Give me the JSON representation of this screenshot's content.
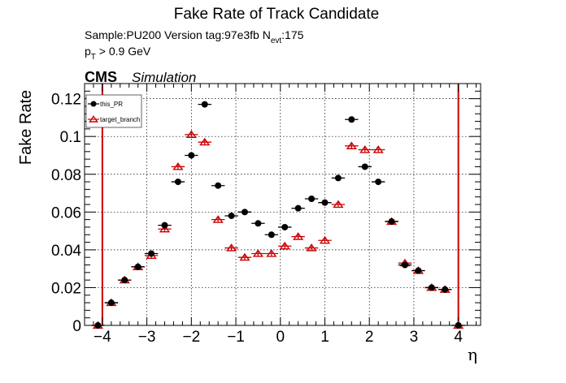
{
  "chart_data": {
    "type": "scatter",
    "title": "Fake Rate of Track Candidate",
    "info_line1": "Sample:PU200   Version tag:97e3fb  N",
    "info_line1_sub": "evt",
    "info_line1_suffix": ":175",
    "info_line2_p": "p",
    "info_line2_sub": "T",
    "info_line2_rest": " > 0.9 GeV",
    "cms_label": "CMS",
    "simulation_label": "Simulation",
    "xlabel": "η",
    "ylabel": "Fake Rate",
    "xlim": [
      -4.4,
      4.5
    ],
    "ylim": [
      0,
      0.128
    ],
    "x_ticks": [
      -4,
      -3,
      -2,
      -1,
      0,
      1,
      2,
      3,
      4
    ],
    "x_tick_labels": [
      "−4",
      "−3",
      "−2",
      "−1",
      "0",
      "1",
      "2",
      "3",
      "4"
    ],
    "y_ticks": [
      0,
      0.02,
      0.04,
      0.06,
      0.08,
      0.1,
      0.12
    ],
    "y_tick_labels": [
      "0",
      "0.02",
      "0.04",
      "0.06",
      "0.08",
      "0.1",
      "0.12"
    ],
    "grid": true,
    "legend_position": "top-left",
    "vertical_lines": [
      -4,
      4
    ],
    "vertical_line_color": "#cc0000",
    "bin_halfwidth": 0.15,
    "series": [
      {
        "name": "this_PR",
        "color": "#000000",
        "marker": "filled-circle",
        "x": [
          -4.1,
          -3.8,
          -3.5,
          -3.2,
          -2.9,
          -2.6,
          -2.3,
          -2.0,
          -1.7,
          -1.4,
          -1.1,
          -0.8,
          -0.5,
          -0.2,
          0.1,
          0.4,
          0.7,
          1.0,
          1.3,
          1.6,
          1.9,
          2.2,
          2.5,
          2.8,
          3.1,
          3.4,
          3.7,
          4.0
        ],
        "y": [
          0.0,
          0.012,
          0.024,
          0.031,
          0.038,
          0.053,
          0.076,
          0.09,
          0.117,
          0.074,
          0.058,
          0.06,
          0.054,
          0.048,
          0.052,
          0.062,
          0.067,
          0.065,
          0.078,
          0.109,
          0.084,
          0.076,
          0.055,
          0.032,
          0.029,
          0.02,
          0.019,
          0.0
        ]
      },
      {
        "name": "target_branch",
        "color": "#cc0000",
        "marker": "open-triangle",
        "x": [
          -4.1,
          -3.8,
          -3.5,
          -3.2,
          -2.9,
          -2.6,
          -2.3,
          -2.0,
          -1.7,
          -1.4,
          -1.1,
          -0.8,
          -0.5,
          -0.2,
          0.1,
          0.4,
          0.7,
          1.0,
          1.3,
          1.6,
          1.9,
          2.2,
          2.5,
          2.8,
          3.1,
          3.4,
          3.7,
          4.0
        ],
        "y": [
          0.0,
          0.012,
          0.024,
          0.031,
          0.037,
          0.051,
          0.084,
          0.101,
          0.097,
          0.056,
          0.041,
          0.036,
          0.038,
          0.038,
          0.042,
          0.047,
          0.041,
          0.045,
          0.064,
          0.095,
          0.093,
          0.093,
          0.055,
          0.033,
          0.029,
          0.02,
          0.019,
          0.0
        ]
      }
    ]
  }
}
